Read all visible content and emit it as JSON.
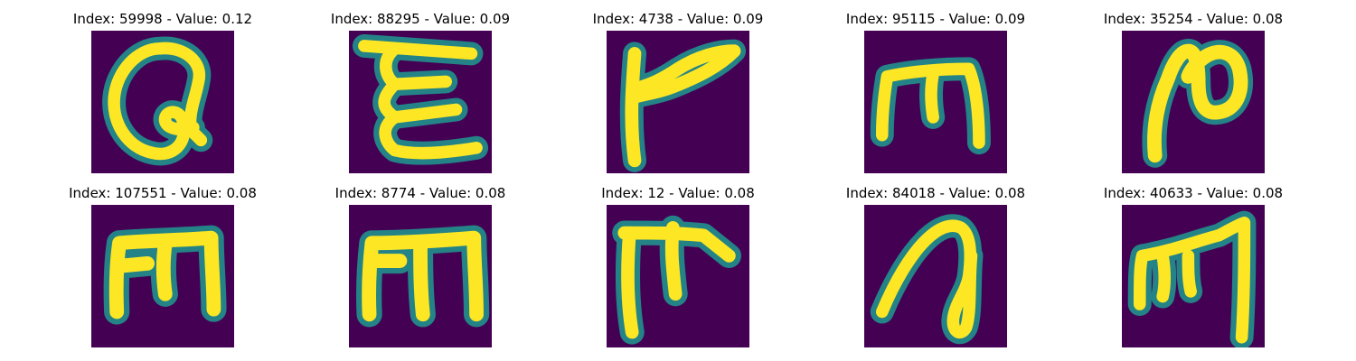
{
  "palette": {
    "background": "#440154",
    "edge": "#21918c",
    "mid": "#5ec962",
    "core": "#fde725"
  },
  "tiles": [
    {
      "title": "Index: 59998 - Value: 0.12",
      "index": 59998,
      "value": 0.12,
      "glyph": "letter-a-loop"
    },
    {
      "title": "Index: 88295 - Value: 0.09",
      "index": 88295,
      "value": 0.09,
      "glyph": "letter-e-curly"
    },
    {
      "title": "Index: 4738 - Value: 0.09",
      "index": 4738,
      "value": 0.09,
      "glyph": "letter-r-angular"
    },
    {
      "title": "Index: 95115 - Value: 0.09",
      "index": 95115,
      "value": 0.09,
      "glyph": "letter-m-rounded"
    },
    {
      "title": "Index: 35254 - Value: 0.08",
      "index": 35254,
      "value": 0.08,
      "glyph": "letter-n-script"
    },
    {
      "title": "Index: 107551 - Value: 0.08",
      "index": 107551,
      "value": 0.08,
      "glyph": "letter-m-square"
    },
    {
      "title": "Index: 8774 - Value: 0.08",
      "index": 8774,
      "value": 0.08,
      "glyph": "letter-m-square"
    },
    {
      "title": "Index: 12 - Value: 0.08",
      "index": 12,
      "value": 0.08,
      "glyph": "letter-t-hook"
    },
    {
      "title": "Index: 84018 - Value: 0.08",
      "index": 84018,
      "value": 0.08,
      "glyph": "letter-a-slanted"
    },
    {
      "title": "Index: 40633 - Value: 0.08",
      "index": 40633,
      "value": 0.08,
      "glyph": "letter-m-slanted"
    }
  ]
}
